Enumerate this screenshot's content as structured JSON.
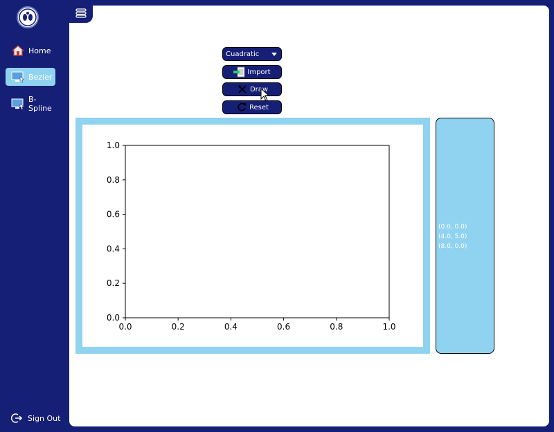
{
  "sidebar": {
    "logo_icon": "school-crest-logo",
    "items": [
      {
        "label": "Home",
        "icon": "home-icon"
      },
      {
        "label": "Bezier",
        "icon": "bezier-monitor-icon",
        "active": true
      },
      {
        "label": "B-Spline",
        "icon": "bspline-monitor-icon"
      }
    ],
    "signout_label": "Sign Out"
  },
  "toolbar": {
    "curve_type": "Cuadratic",
    "import_label": "Import",
    "draw_label": "Draw",
    "reset_label": "Reset"
  },
  "chart_data": {
    "type": "line",
    "series": [],
    "xlim": [
      0.0,
      1.0
    ],
    "ylim": [
      0.0,
      1.0
    ],
    "xticks": [
      "0.0",
      "0.2",
      "0.4",
      "0.6",
      "0.8",
      "1.0"
    ],
    "yticks": [
      "0.0",
      "0.2",
      "0.4",
      "0.6",
      "0.8",
      "1.0"
    ],
    "grid": false
  },
  "points": [
    "(0.0, 0.0)",
    "(4.0, 5.0)",
    "(8.0, 0.0)"
  ],
  "colors": {
    "navy": "#161f76",
    "accent": "#8fd3f0"
  }
}
